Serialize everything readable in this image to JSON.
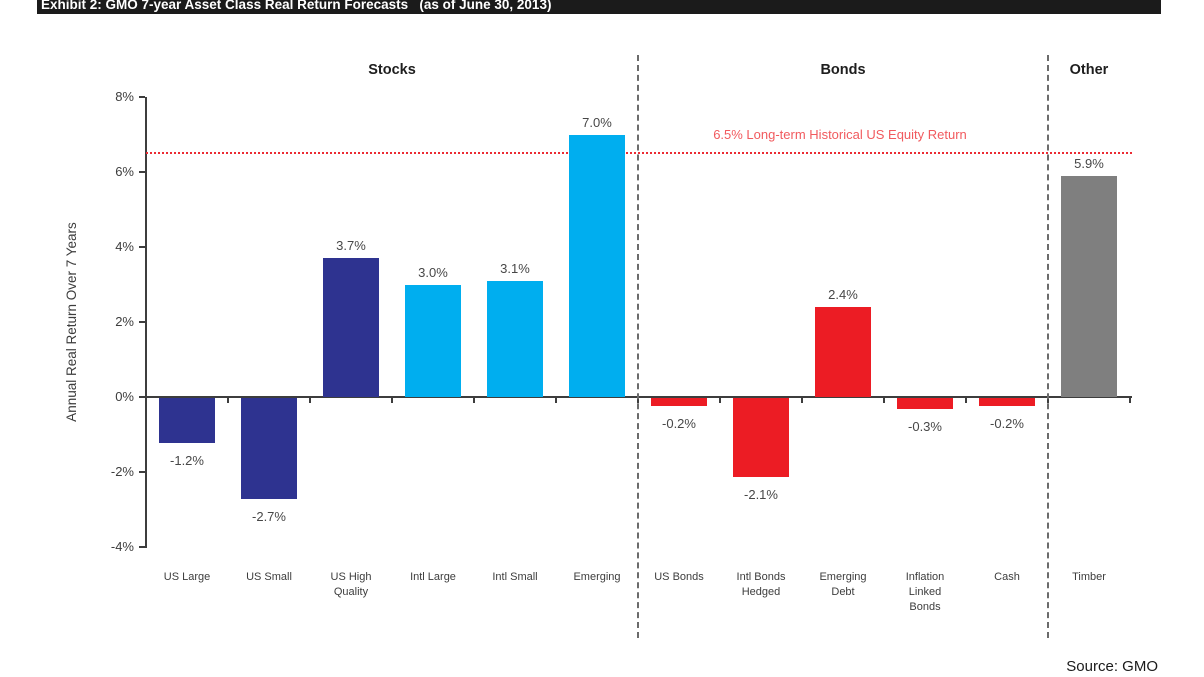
{
  "page": {
    "title": "Exhibit 2: GMO 7-year Asset Class Real Return Forecasts   (as of June 30, 2013)",
    "source": "Source: GMO"
  },
  "chart_data": {
    "type": "bar",
    "title": "Exhibit 2: GMO 7-year Asset Class Real Return Forecasts (as of June 30, 2013)",
    "ylabel": "Annual Real Return Over 7 Years",
    "ylim": [
      -4,
      8
    ],
    "y_ticks": [
      8,
      6,
      4,
      2,
      0,
      -2,
      -4
    ],
    "y_tick_labels": [
      "8%",
      "6%",
      "4%",
      "2%",
      "0%",
      "-2%",
      "-4%"
    ],
    "grid": false,
    "legend": "none",
    "groups": [
      {
        "label": "Stocks",
        "start": 0,
        "end": 5
      },
      {
        "label": "Bonds",
        "start": 6,
        "end": 10
      },
      {
        "label": "Other",
        "start": 11,
        "end": 11
      }
    ],
    "categories": [
      "US Large",
      "US Small",
      "US High\nQuality",
      "Intl Large",
      "Intl Small",
      "Emerging",
      "US Bonds",
      "Intl Bonds\nHedged",
      "Emerging\nDebt",
      "Inflation\nLinked\nBonds",
      "Cash",
      "Timber"
    ],
    "values": [
      -1.2,
      -2.7,
      3.7,
      3.0,
      3.1,
      7.0,
      -0.2,
      -2.1,
      2.4,
      -0.3,
      -0.2,
      5.9
    ],
    "value_labels": [
      "-1.2%",
      "-2.7%",
      "3.7%",
      "3.0%",
      "3.1%",
      "7.0%",
      "-0.2%",
      "-2.1%",
      "2.4%",
      "-0.3%",
      "-0.2%",
      "5.9%"
    ],
    "bar_colors": [
      "navy",
      "navy",
      "navy",
      "cyan",
      "cyan",
      "cyan",
      "red",
      "red",
      "red",
      "red",
      "red",
      "gray"
    ],
    "colors": {
      "navy": "#2E3390",
      "cyan": "#00AEEF",
      "red": "#EC1C24",
      "gray": "#7F7F7F"
    },
    "reference_line": {
      "value": 6.5,
      "label": "6.5% Long-term Historical US Equity Return",
      "line_color": "#EC2B33",
      "text_color": "#F15A5E"
    }
  }
}
